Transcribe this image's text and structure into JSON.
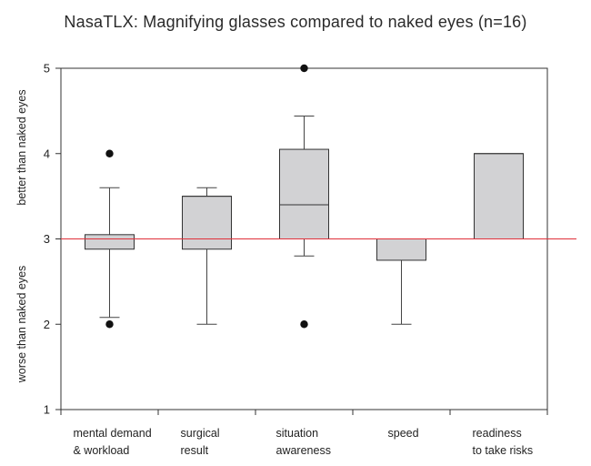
{
  "chart_data": {
    "type": "box",
    "title": "NasaTLX: Magnifying glasses compared to naked eyes (n=16)",
    "xlabel": "",
    "ylabel": "",
    "y_axis_notes": {
      "upper": "better than naked eyes",
      "lower": "worse than naked eyes"
    },
    "ylim": [
      1,
      5
    ],
    "yticks": [
      1,
      2,
      3,
      4,
      5
    ],
    "reference_line": {
      "y": 3,
      "color": "#e0303a"
    },
    "box_fill": "#d2d2d4",
    "grid": false,
    "categories": [
      [
        "mental demand",
        "& workload"
      ],
      [
        "surgical",
        "result"
      ],
      [
        "situation",
        "awareness"
      ],
      [
        "speed"
      ],
      [
        "readiness",
        "to take risks"
      ]
    ],
    "boxes": [
      {
        "whisker_low": 2.08,
        "q1": 2.88,
        "median": 3.0,
        "q3": 3.05,
        "whisker_high": 3.6,
        "outliers": [
          4.0,
          2.0
        ]
      },
      {
        "whisker_low": 2.0,
        "q1": 2.88,
        "median": 3.5,
        "q3": 3.5,
        "whisker_high": 3.6,
        "outliers": []
      },
      {
        "whisker_low": 2.8,
        "q1": 3.0,
        "median": 3.4,
        "q3": 4.05,
        "whisker_high": 4.44,
        "outliers": [
          5.0,
          2.0
        ]
      },
      {
        "whisker_low": 2.0,
        "q1": 2.75,
        "median": 3.0,
        "q3": 3.0,
        "whisker_high": 3.0,
        "outliers": []
      },
      {
        "whisker_low": 3.0,
        "q1": 3.0,
        "median": 4.0,
        "q3": 4.0,
        "whisker_high": 4.0,
        "outliers": []
      }
    ]
  }
}
